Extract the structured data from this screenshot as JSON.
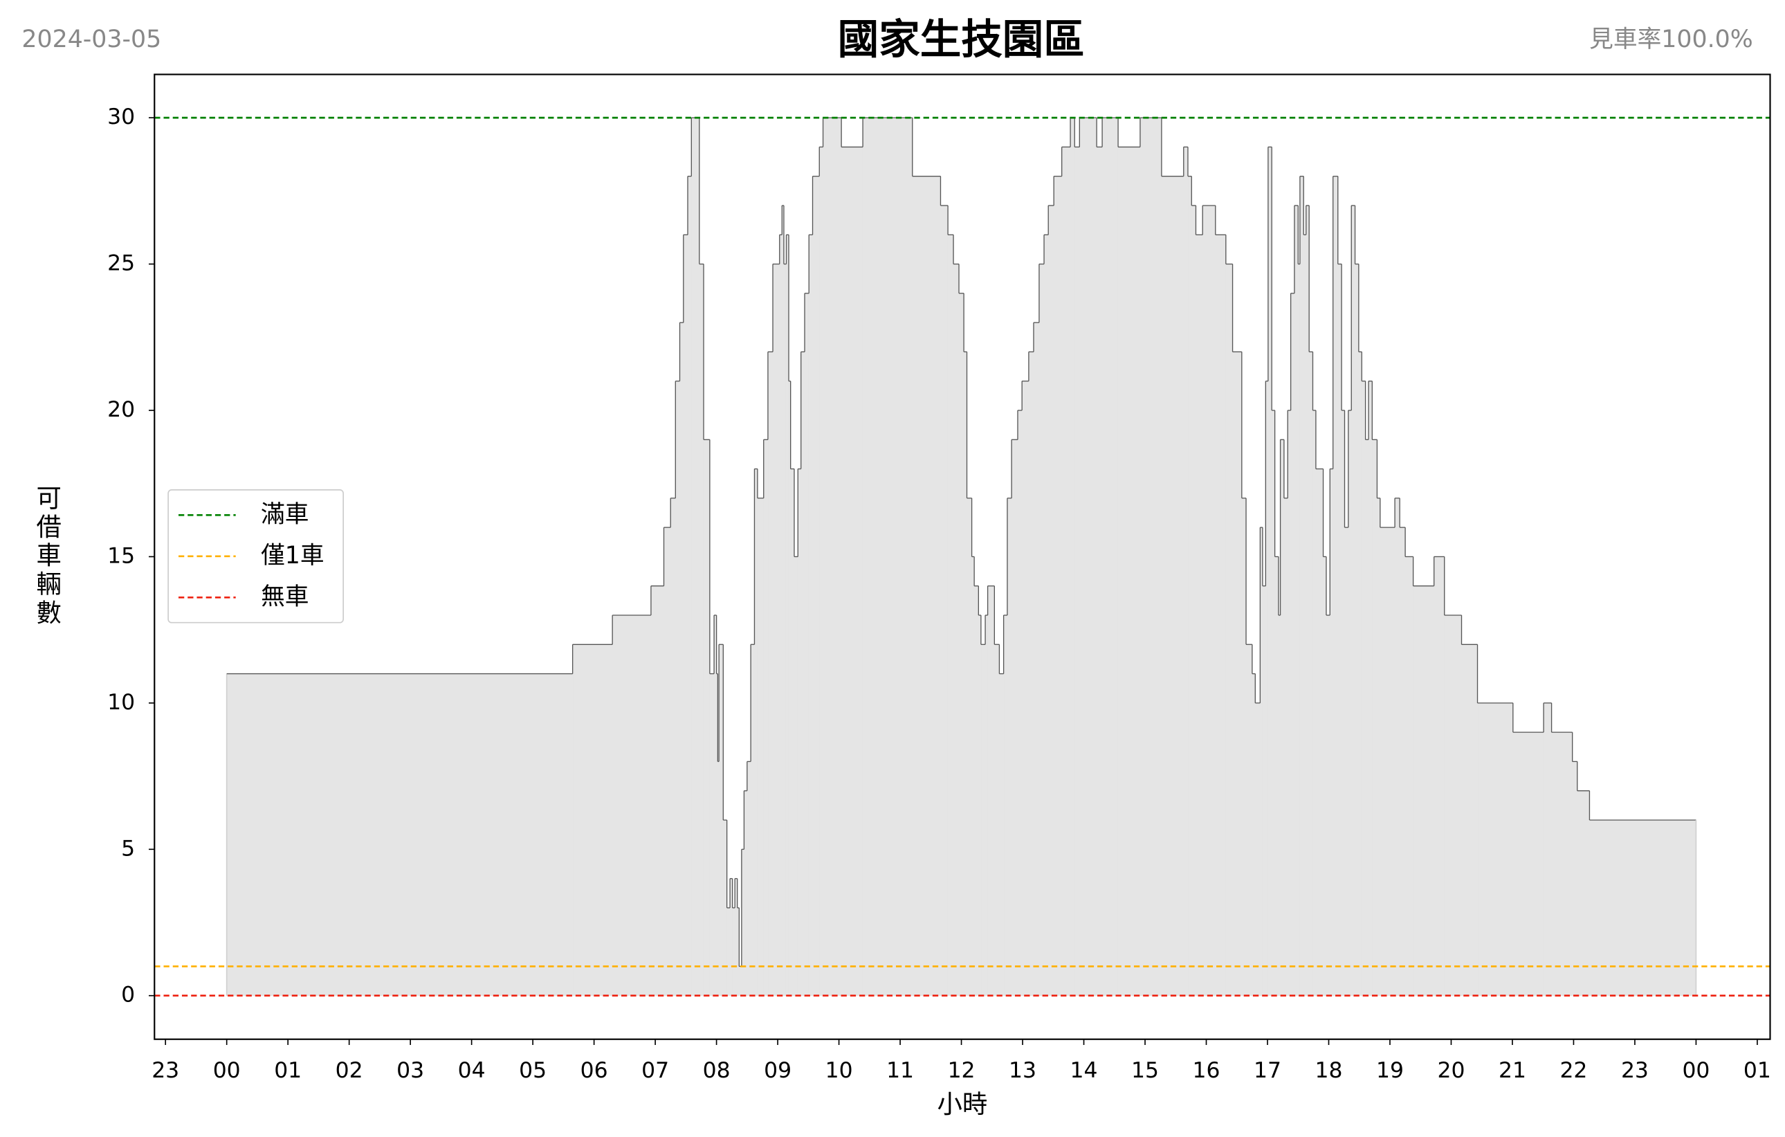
{
  "chart_data": {
    "type": "step-area",
    "title": "國家生技園區",
    "subtitle": "2024-03-05",
    "annotation": "見車率100.0%",
    "x_label": "小時",
    "y_label": "可借車輛數",
    "xlim": [
      -1.18,
      25.21
    ],
    "ylim": [
      -1.49,
      31.48
    ],
    "xticks": [
      {
        "value": -1,
        "label": "23"
      },
      {
        "value": 0,
        "label": "00"
      },
      {
        "value": 1,
        "label": "01"
      },
      {
        "value": 2,
        "label": "02"
      },
      {
        "value": 3,
        "label": "03"
      },
      {
        "value": 4,
        "label": "04"
      },
      {
        "value": 5,
        "label": "05"
      },
      {
        "value": 6,
        "label": "06"
      },
      {
        "value": 7,
        "label": "07"
      },
      {
        "value": 8,
        "label": "08"
      },
      {
        "value": 9,
        "label": "09"
      },
      {
        "value": 10,
        "label": "10"
      },
      {
        "value": 11,
        "label": "11"
      },
      {
        "value": 12,
        "label": "12"
      },
      {
        "value": 13,
        "label": "13"
      },
      {
        "value": 14,
        "label": "14"
      },
      {
        "value": 15,
        "label": "15"
      },
      {
        "value": 16,
        "label": "16"
      },
      {
        "value": 17,
        "label": "17"
      },
      {
        "value": 18,
        "label": "18"
      },
      {
        "value": 19,
        "label": "19"
      },
      {
        "value": 20,
        "label": "20"
      },
      {
        "value": 21,
        "label": "21"
      },
      {
        "value": 22,
        "label": "22"
      },
      {
        "value": 23,
        "label": "23"
      },
      {
        "value": 24,
        "label": "00"
      },
      {
        "value": 25,
        "label": "01"
      }
    ],
    "yticks": [
      0,
      5,
      10,
      15,
      20,
      25,
      30
    ],
    "grid": false,
    "legend": "center left",
    "series": [
      {
        "color": "#555555",
        "fill": "#e5e5e5",
        "x": [
          0,
          5.65,
          6.3,
          6.93,
          7.14,
          7.25,
          7.33,
          7.4,
          7.46,
          7.53,
          7.59,
          7.72,
          7.79,
          7.89,
          7.96,
          8.0,
          8.02,
          8.04,
          8.11,
          8.17,
          8.22,
          8.26,
          8.3,
          8.34,
          8.37,
          8.41,
          8.45,
          8.5,
          8.56,
          8.62,
          8.67,
          8.77,
          8.84,
          8.92,
          9.03,
          9.07,
          9.1,
          9.14,
          9.18,
          9.21,
          9.27,
          9.33,
          9.38,
          9.44,
          9.51,
          9.57,
          9.68,
          9.74,
          10.04,
          10.39,
          11.2,
          11.66,
          11.78,
          11.87,
          11.96,
          12.04,
          12.09,
          12.17,
          12.21,
          12.28,
          12.32,
          12.39,
          12.43,
          12.54,
          12.62,
          12.69,
          12.75,
          12.82,
          12.92,
          12.99,
          13.1,
          13.18,
          13.27,
          13.35,
          13.42,
          13.51,
          13.64,
          13.78,
          13.85,
          13.93,
          14.21,
          14.3,
          14.56,
          14.92,
          15.27,
          15.63,
          15.7,
          15.76,
          15.83,
          15.94,
          16.15,
          16.32,
          16.43,
          16.58,
          16.65,
          16.75,
          16.8,
          16.88,
          16.92,
          16.97,
          17.01,
          17.07,
          17.12,
          17.18,
          17.21,
          17.27,
          17.33,
          17.38,
          17.44,
          17.5,
          17.53,
          17.59,
          17.63,
          17.68,
          17.74,
          17.79,
          17.91,
          17.96,
          18.02,
          18.07,
          18.15,
          18.21,
          18.26,
          18.32,
          18.37,
          18.43,
          18.49,
          18.54,
          18.6,
          18.65,
          18.71,
          18.79,
          18.84,
          19.08,
          19.16,
          19.25,
          19.38,
          19.72,
          19.89,
          20.17,
          20.43,
          21.01,
          21.51,
          21.64,
          21.98,
          22.06,
          22.26,
          24.0
        ],
        "values": [
          11,
          12,
          13,
          14,
          16,
          17,
          21,
          23,
          26,
          28,
          30,
          25,
          19,
          11,
          13,
          11,
          8,
          12,
          6,
          3,
          4,
          3,
          4,
          3,
          1,
          5,
          7,
          8,
          12,
          18,
          17,
          19,
          22,
          25,
          26,
          27,
          25,
          26,
          21,
          18,
          15,
          18,
          22,
          24,
          26,
          28,
          29,
          30,
          29,
          30,
          28,
          27,
          26,
          25,
          24,
          22,
          17,
          15,
          14,
          13,
          12,
          13,
          14,
          12,
          11,
          13,
          17,
          19,
          20,
          21,
          22,
          23,
          25,
          26,
          27,
          28,
          29,
          30,
          29,
          30,
          29,
          30,
          29,
          30,
          28,
          29,
          28,
          27,
          26,
          27,
          26,
          25,
          22,
          17,
          12,
          11,
          10,
          16,
          14,
          21,
          29,
          20,
          15,
          13,
          19,
          17,
          20,
          24,
          27,
          25,
          28,
          26,
          27,
          22,
          20,
          18,
          15,
          13,
          18,
          28,
          25,
          20,
          16,
          20,
          27,
          25,
          22,
          21,
          19,
          21,
          19,
          17,
          16,
          17,
          16,
          15,
          14,
          15,
          13,
          12,
          10,
          9,
          10,
          9,
          8,
          7,
          6,
          6
        ]
      }
    ],
    "reference_lines": [
      {
        "name": "滿車",
        "color": "#008000",
        "value": 30
      },
      {
        "name": "僅1車",
        "color": "#ffb000",
        "value": 1
      },
      {
        "name": "無車",
        "color": "#ee2211",
        "value": 0
      }
    ]
  }
}
